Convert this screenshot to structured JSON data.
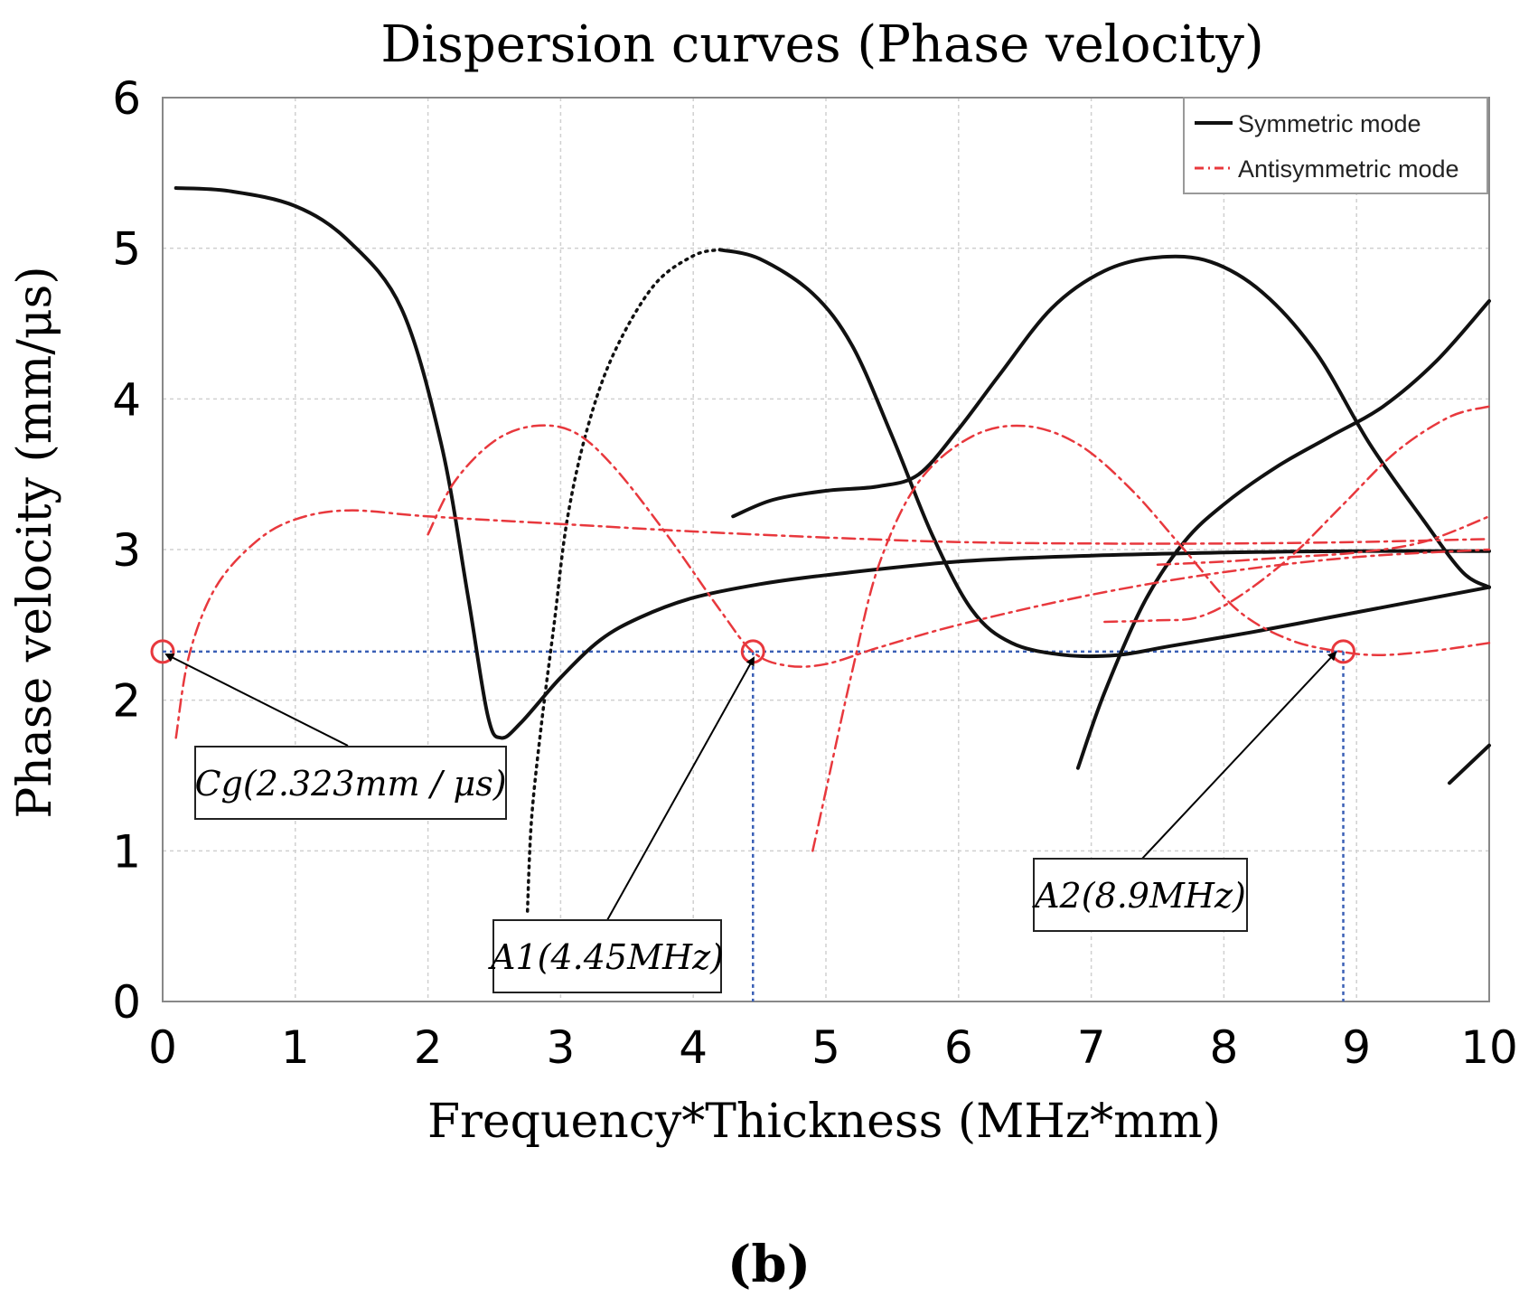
{
  "chart_data": {
    "type": "line",
    "title": "Dispersion curves (Phase velocity)",
    "xlabel": "Frequency*Thickness (MHz*mm)",
    "ylabel": "Phase velocity (mm/μs)",
    "xlim": [
      0,
      10
    ],
    "ylim": [
      0,
      6
    ],
    "xticks": [
      "0",
      "1",
      "2",
      "3",
      "4",
      "5",
      "6",
      "7",
      "8",
      "9",
      "10"
    ],
    "yticks": [
      "0",
      "1",
      "2",
      "3",
      "4",
      "5",
      "6"
    ],
    "grid": true,
    "legend_position": "top-right",
    "legend": [
      {
        "label": "Symmetric mode",
        "color": "#111111",
        "style": "solid"
      },
      {
        "label": "Antisymmetric mode",
        "color": "#e8383d",
        "style": "dashdot"
      }
    ],
    "panel_label": "(b)",
    "reference_line_y": 2.323,
    "reference_line_x": [
      4.45,
      8.9
    ],
    "reference_color": "#3a5fb5",
    "series": [
      {
        "kind": "symmetric",
        "style": "solid",
        "points": [
          [
            0.1,
            5.4
          ],
          [
            0.5,
            5.38
          ],
          [
            1.0,
            5.28
          ],
          [
            1.4,
            5.05
          ],
          [
            1.8,
            4.6
          ],
          [
            2.1,
            3.7
          ],
          [
            2.3,
            2.7
          ],
          [
            2.45,
            1.9
          ],
          [
            2.55,
            1.75
          ],
          [
            2.7,
            1.85
          ],
          [
            3.0,
            2.15
          ],
          [
            3.3,
            2.4
          ],
          [
            3.6,
            2.55
          ],
          [
            4.0,
            2.68
          ],
          [
            4.5,
            2.77
          ],
          [
            5.0,
            2.83
          ],
          [
            6.0,
            2.92
          ],
          [
            7.0,
            2.96
          ],
          [
            8.0,
            2.98
          ],
          [
            9.0,
            2.99
          ],
          [
            10.0,
            2.99
          ]
        ]
      },
      {
        "kind": "symmetric",
        "style": "dotted",
        "points": [
          [
            2.75,
            0.6
          ],
          [
            2.78,
            1.2
          ],
          [
            2.85,
            1.8
          ],
          [
            2.95,
            2.5
          ],
          [
            3.05,
            3.2
          ],
          [
            3.2,
            3.8
          ],
          [
            3.4,
            4.3
          ],
          [
            3.7,
            4.75
          ],
          [
            4.0,
            4.95
          ],
          [
            4.2,
            4.99
          ]
        ]
      },
      {
        "kind": "symmetric",
        "style": "solid",
        "points": [
          [
            4.2,
            4.99
          ],
          [
            4.5,
            4.93
          ],
          [
            4.9,
            4.7
          ],
          [
            5.2,
            4.35
          ],
          [
            5.5,
            3.75
          ],
          [
            5.8,
            3.1
          ],
          [
            6.1,
            2.6
          ],
          [
            6.4,
            2.38
          ],
          [
            6.8,
            2.3
          ],
          [
            7.2,
            2.3
          ],
          [
            7.6,
            2.36
          ],
          [
            8.2,
            2.45
          ],
          [
            8.8,
            2.55
          ],
          [
            9.4,
            2.65
          ],
          [
            10.0,
            2.75
          ]
        ]
      },
      {
        "kind": "symmetric",
        "style": "solid",
        "points": [
          [
            4.3,
            3.22
          ],
          [
            4.6,
            3.33
          ],
          [
            5.0,
            3.39
          ],
          [
            5.4,
            3.42
          ],
          [
            5.7,
            3.5
          ],
          [
            6.0,
            3.8
          ],
          [
            6.3,
            4.15
          ],
          [
            6.7,
            4.6
          ],
          [
            7.1,
            4.85
          ],
          [
            7.5,
            4.94
          ],
          [
            7.9,
            4.91
          ],
          [
            8.3,
            4.7
          ],
          [
            8.7,
            4.3
          ],
          [
            9.1,
            3.7
          ],
          [
            9.5,
            3.2
          ],
          [
            9.8,
            2.85
          ],
          [
            10.0,
            2.75
          ]
        ]
      },
      {
        "kind": "symmetric",
        "style": "solid",
        "points": [
          [
            6.9,
            1.55
          ],
          [
            7.1,
            2.05
          ],
          [
            7.4,
            2.65
          ],
          [
            7.7,
            3.05
          ],
          [
            8.0,
            3.3
          ],
          [
            8.4,
            3.55
          ],
          [
            8.8,
            3.75
          ],
          [
            9.2,
            3.95
          ],
          [
            9.6,
            4.25
          ],
          [
            10.0,
            4.65
          ]
        ]
      },
      {
        "kind": "symmetric",
        "style": "solid",
        "points": [
          [
            9.7,
            1.45
          ],
          [
            10.0,
            1.7
          ]
        ]
      },
      {
        "kind": "antisymmetric",
        "style": "dashdot",
        "points": [
          [
            0.1,
            1.75
          ],
          [
            0.2,
            2.3
          ],
          [
            0.4,
            2.75
          ],
          [
            0.7,
            3.05
          ],
          [
            1.0,
            3.2
          ],
          [
            1.4,
            3.26
          ],
          [
            2.0,
            3.22
          ],
          [
            3.0,
            3.17
          ],
          [
            4.0,
            3.12
          ],
          [
            5.0,
            3.08
          ],
          [
            6.0,
            3.05
          ],
          [
            7.0,
            3.04
          ],
          [
            8.0,
            3.04
          ],
          [
            9.0,
            3.05
          ],
          [
            10.0,
            3.07
          ]
        ]
      },
      {
        "kind": "antisymmetric",
        "style": "dashdot",
        "points": [
          [
            2.0,
            3.1
          ],
          [
            2.2,
            3.45
          ],
          [
            2.5,
            3.72
          ],
          [
            2.8,
            3.82
          ],
          [
            3.1,
            3.78
          ],
          [
            3.4,
            3.55
          ],
          [
            3.8,
            3.1
          ],
          [
            4.2,
            2.6
          ],
          [
            4.45,
            2.32
          ],
          [
            4.7,
            2.23
          ],
          [
            5.0,
            2.24
          ],
          [
            5.4,
            2.35
          ],
          [
            6.0,
            2.5
          ],
          [
            7.0,
            2.7
          ],
          [
            8.0,
            2.85
          ],
          [
            9.0,
            2.95
          ],
          [
            10.0,
            3.0
          ]
        ]
      },
      {
        "kind": "antisymmetric",
        "style": "dashdot",
        "points": [
          [
            4.9,
            1.0
          ],
          [
            5.0,
            1.4
          ],
          [
            5.2,
            2.2
          ],
          [
            5.4,
            2.9
          ],
          [
            5.7,
            3.45
          ],
          [
            6.1,
            3.75
          ],
          [
            6.5,
            3.82
          ],
          [
            6.9,
            3.7
          ],
          [
            7.3,
            3.4
          ],
          [
            7.7,
            3.0
          ],
          [
            8.1,
            2.6
          ],
          [
            8.5,
            2.4
          ],
          [
            8.9,
            2.32
          ],
          [
            9.2,
            2.3
          ],
          [
            9.6,
            2.33
          ],
          [
            10.0,
            2.38
          ]
        ]
      },
      {
        "kind": "antisymmetric",
        "style": "dashdot",
        "points": [
          [
            7.1,
            2.52
          ],
          [
            7.5,
            2.53
          ],
          [
            7.8,
            2.55
          ],
          [
            8.1,
            2.68
          ],
          [
            8.5,
            2.95
          ],
          [
            8.9,
            3.3
          ],
          [
            9.3,
            3.65
          ],
          [
            9.7,
            3.88
          ],
          [
            10.0,
            3.95
          ]
        ]
      },
      {
        "kind": "antisymmetric",
        "style": "dashdot",
        "points": [
          [
            7.5,
            2.9
          ],
          [
            8.0,
            2.92
          ],
          [
            8.5,
            2.95
          ],
          [
            9.0,
            2.98
          ],
          [
            9.5,
            3.05
          ],
          [
            10.0,
            3.22
          ]
        ]
      }
    ],
    "annotations": [
      {
        "text": "Cg(2.323mm / μs)",
        "target": [
          0.0,
          2.323
        ],
        "marker": "circle"
      },
      {
        "text": "A1(4.45MHz)",
        "target": [
          4.45,
          2.323
        ],
        "marker": "circle"
      },
      {
        "text": "A2(8.9MHz)",
        "target": [
          8.9,
          2.323
        ],
        "marker": "circle"
      }
    ]
  }
}
